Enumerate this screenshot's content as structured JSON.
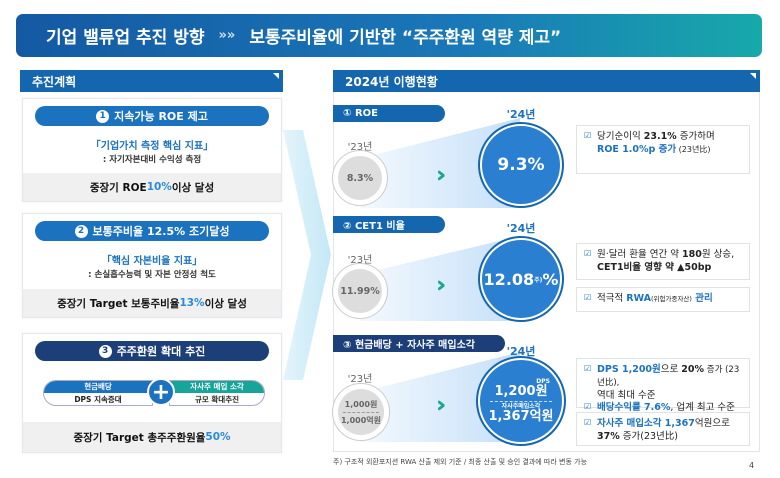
{
  "banner": {
    "left": "기업 밸류업 추진 방향",
    "sep": "»»",
    "right": "보통주비율에 기반한 “주주환원 역량 제고”"
  },
  "left": {
    "title": "추진계획",
    "cards": [
      {
        "num": "1",
        "pill": "지속가능 ROE 제고",
        "key": "「기업가치 측정 핵심 지표」",
        "sub": ": 자기자본대비 수익성 측정",
        "goal_a": "중장기 ROE ",
        "goal_hl": "10%",
        "goal_b": " 이상 달성"
      },
      {
        "num": "2",
        "pill": "보통주비율 12.5% 조기달성",
        "key": "「핵심 자본비율 지표」",
        "sub": ": 손실흡수능력 및 자본 안정성 척도",
        "goal_a": "중장기 Target 보통주비율 ",
        "goal_hl": "13%",
        "goal_b": " 이상 달성"
      },
      {
        "num": "3",
        "pill": "주주환원 확대 추진",
        "cash_title": "현금배당",
        "cash_sub": "DPS 지속증대",
        "buy_title": "자사주 매입 소각",
        "buy_sub": "규모 확대추진",
        "goal_a": "중장기 Target 총주주환원율 ",
        "goal_hl": "50%",
        "goal_b": ""
      }
    ]
  },
  "right": {
    "title": "2024년 이행현황",
    "sections": [
      {
        "tag": "① ROE",
        "y23": "'23년",
        "v23": "8.3%",
        "y24": "'24년",
        "v24": "9.3%",
        "notes": [
          {
            "a": "당기순이익 ",
            "b": "23.1%",
            "c": " 증가하며",
            "d": "ROE 1.0%p 증가",
            "e": " (23년比)"
          }
        ]
      },
      {
        "tag": "② CET1 비율",
        "y23": "'23년",
        "v23": "11.99%",
        "y24": "'24년",
        "v24": "12.08",
        "v24_sup": "주)",
        "v24_unit": "%",
        "notes": [
          {
            "a": "원·달러 환율 연간 약 ",
            "b": "180",
            "c": "원 상승,",
            "d": "CET1비율 영향 약 ▲50bp"
          },
          {
            "a": "적극적 ",
            "b": "RWA",
            "c": "(위험가중자산)",
            "d": " 관리"
          }
        ]
      },
      {
        "tag": "③ 현금배당 + 자사주 매입소각",
        "y23": "'23년",
        "v23a": "1,000원",
        "v23b": "1,000억원",
        "y24": "'24년",
        "dps_label": "DPS",
        "v24a": "1,200원",
        "buy_label": "자사주매입소각",
        "v24b": "1,367억원",
        "notes": [
          {
            "a": "DPS 1,200원",
            "b": "으로 ",
            "c": "20%",
            "d": " 증가 (23년比),",
            "e": "역대 최대 수준",
            "f": "배당수익률 7.6%",
            "g": ", 업계 최고 수준"
          },
          {
            "a": "자사주 매입소각 1,367",
            "b": "억원으로",
            "c": "37%",
            "d": " 증가(23년比)"
          }
        ]
      }
    ]
  },
  "footnote": "주) 구조적 외환포지션 RWA 산출 제외 기준 / 최종 산출 및 승인 결과에 따라 변동 가능",
  "page_number": "4"
}
